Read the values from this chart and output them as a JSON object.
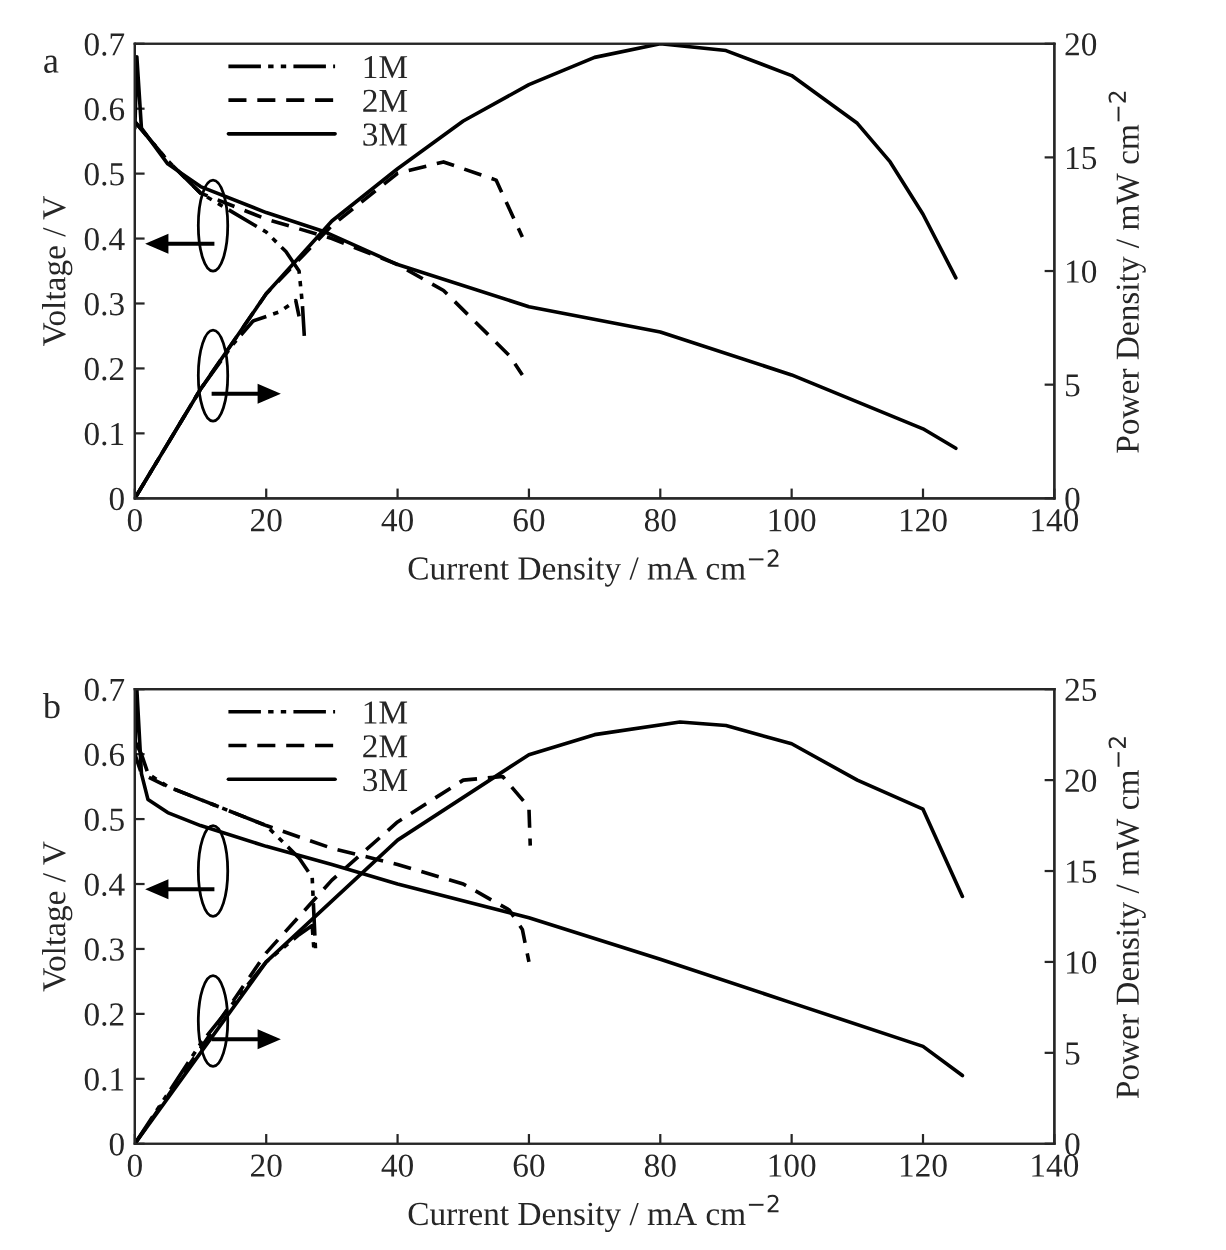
{
  "chart_data": [
    {
      "type": "line",
      "title": "a",
      "xlabel": "Current Density / mA cm$^{−2}$",
      "ylabel": "Voltage / V",
      "y2label": "Power Density / mW cm$^{−2}$",
      "xlim": [
        0,
        140
      ],
      "xticks": [
        0,
        20,
        40,
        60,
        80,
        100,
        120,
        140
      ],
      "ylim": [
        0,
        0.7
      ],
      "yticks": [
        0,
        0.1,
        0.2,
        0.3,
        0.4,
        0.5,
        0.6,
        0.7
      ],
      "y2lim": [
        0,
        20
      ],
      "y2ticks": [
        0,
        5,
        10,
        15,
        20
      ],
      "legend": "top left",
      "grid": false,
      "series": [
        {
          "name": "1M",
          "color": "#000000",
          "line_style": "dotted",
          "x": [
            0,
            5,
            10,
            15,
            20,
            23,
            25,
            25.5,
            25.8
          ],
          "values": [
            0.58,
            0.52,
            0.47,
            0.44,
            0.41,
            0.38,
            0.35,
            0.3,
            0.25
          ]
        },
        {
          "name": "2M",
          "color": "#000000",
          "line_style": "dashed",
          "x": [
            0,
            5,
            10,
            20,
            30,
            40,
            47,
            52,
            57,
            59
          ],
          "values": [
            0.58,
            0.52,
            0.47,
            0.43,
            0.4,
            0.36,
            0.32,
            0.27,
            0.22,
            0.19
          ]
        },
        {
          "name": "3M",
          "color": "#000000",
          "line_style": "solid",
          "x": [
            0,
            0.3,
            1,
            5,
            10,
            20,
            29,
            40,
            60,
            80,
            100,
            120,
            125
          ],
          "values": [
            0.57,
            0.68,
            0.57,
            0.515,
            0.48,
            0.44,
            0.41,
            0.36,
            0.295,
            0.256,
            0.19,
            0.107,
            0.077
          ]
        },
        {
          "color": "#000000",
          "line_style": "dotted",
          "axis": "y2",
          "x": [
            0,
            10,
            15,
            18,
            22,
            24.5,
            25
          ],
          "values": [
            0,
            4.8,
            6.8,
            7.8,
            8.2,
            8.7,
            8.0
          ]
        },
        {
          "color": "#000000",
          "line_style": "dashed",
          "axis": "y2",
          "x": [
            0,
            10,
            20,
            30,
            40,
            47,
            55,
            59
          ],
          "values": [
            0,
            4.8,
            9,
            12,
            14.3,
            14.8,
            14,
            11.5
          ]
        },
        {
          "color": "#000000",
          "line_style": "solid",
          "axis": "y2",
          "x": [
            0,
            10,
            20,
            30,
            40,
            50,
            60,
            70,
            80,
            90,
            100,
            110,
            115,
            120,
            125
          ],
          "values": [
            0,
            4.8,
            9,
            12.2,
            14.5,
            16.6,
            18.2,
            19.4,
            20,
            19.7,
            18.6,
            16.5,
            14.8,
            12.5,
            9.7
          ]
        }
      ]
    },
    {
      "type": "line",
      "title": "b",
      "xlabel": "Current Density / mA cm$^{−2}$",
      "ylabel": "Voltage / V",
      "y2label": "Power Density / mW cm$^{−2}$",
      "xlim": [
        0,
        140
      ],
      "xticks": [
        0,
        20,
        40,
        60,
        80,
        100,
        120,
        140
      ],
      "ylim": [
        0,
        0.7
      ],
      "yticks": [
        0,
        0.1,
        0.2,
        0.3,
        0.4,
        0.5,
        0.6,
        0.7
      ],
      "y2lim": [
        0,
        25
      ],
      "y2ticks": [
        0,
        5,
        10,
        15,
        20,
        25
      ],
      "legend": "top left",
      "grid": false,
      "series": [
        {
          "name": "1M",
          "color": "#000000",
          "line_style": "dotted",
          "x": [
            0,
            1,
            2,
            5,
            10,
            15,
            20,
            25,
            27,
            27.5
          ],
          "values": [
            0.62,
            0.6,
            0.57,
            0.55,
            0.53,
            0.51,
            0.49,
            0.44,
            0.41,
            0.3
          ]
        },
        {
          "name": "2M",
          "color": "#000000",
          "line_style": "dashed",
          "x": [
            0,
            1,
            5,
            10,
            20,
            30,
            36,
            40,
            50,
            57,
            59,
            60
          ],
          "values": [
            0.6,
            0.57,
            0.55,
            0.53,
            0.49,
            0.455,
            0.44,
            0.43,
            0.4,
            0.36,
            0.33,
            0.28
          ]
        },
        {
          "name": "3M",
          "color": "#000000",
          "line_style": "solid",
          "x": [
            0,
            0.3,
            1,
            2,
            5,
            10,
            20,
            30,
            40,
            60,
            80,
            100,
            120,
            126
          ],
          "values": [
            0.6,
            0.7,
            0.57,
            0.53,
            0.51,
            0.49,
            0.458,
            0.43,
            0.4,
            0.348,
            0.284,
            0.217,
            0.15,
            0.105
          ]
        },
        {
          "color": "#000000",
          "line_style": "dotted",
          "axis": "y2",
          "x": [
            0,
            10,
            20,
            25,
            27,
            27.3
          ],
          "values": [
            0,
            5.5,
            10,
            11.5,
            12,
            10.5
          ]
        },
        {
          "color": "#000000",
          "line_style": "dashed",
          "axis": "y2",
          "x": [
            0,
            20,
            30,
            40,
            50,
            56,
            60,
            60.2
          ],
          "values": [
            0,
            10.5,
            14.5,
            17.7,
            20,
            20.2,
            18.5,
            16.4
          ]
        },
        {
          "color": "#000000",
          "line_style": "solid",
          "axis": "y2",
          "x": [
            0,
            20,
            40,
            60,
            70,
            83,
            90,
            100,
            110,
            120,
            126
          ],
          "values": [
            0,
            10,
            16.7,
            21.4,
            22.5,
            23.2,
            23,
            22,
            20,
            18.4,
            13.6
          ]
        }
      ]
    }
  ]
}
